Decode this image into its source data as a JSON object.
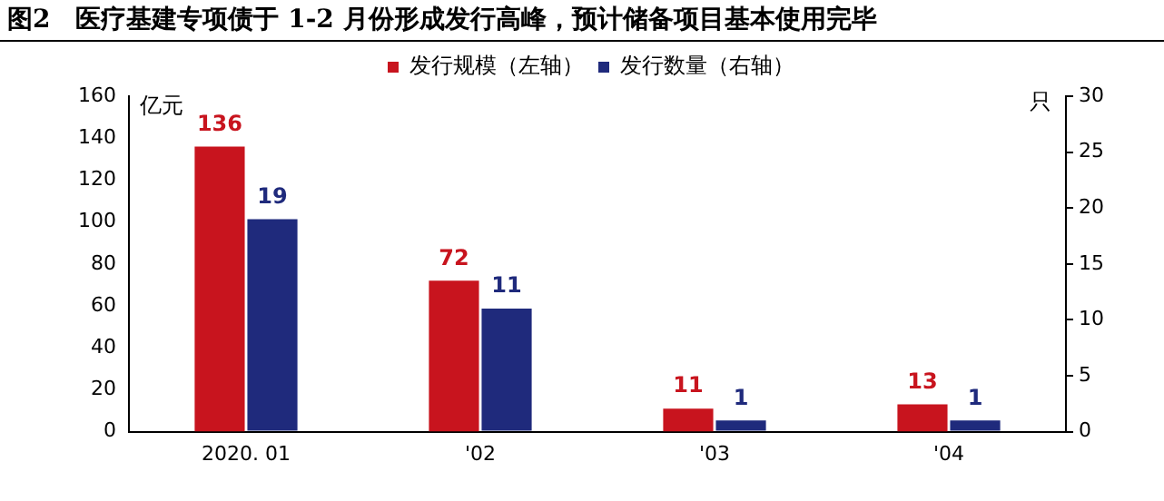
{
  "chart_data": {
    "type": "bar",
    "title": "图2　医疗基建专项债于 1-2 月份形成发行高峰，预计储备项目基本使用完毕",
    "ylabel": "亿元",
    "y2label": "只",
    "categories": [
      "2020. 01",
      "'02",
      "'03",
      "'04"
    ],
    "series": [
      {
        "name": "发行规模（左轴）",
        "color": "#c8141e",
        "values": [
          136,
          72,
          11,
          13
        ]
      },
      {
        "name": "发行数量（右轴）",
        "color": "#1f2a7c",
        "values": [
          19,
          11,
          1,
          1
        ],
        "axis": "y2"
      }
    ],
    "ylim": [
      0,
      160
    ],
    "yticks": [
      0,
      20,
      40,
      60,
      80,
      100,
      120,
      140,
      160
    ],
    "y2lim": [
      0,
      30
    ],
    "y2ticks": [
      0,
      5,
      10,
      15,
      20,
      25,
      30
    ],
    "data_labels": true,
    "legend": "top",
    "grid": false
  }
}
